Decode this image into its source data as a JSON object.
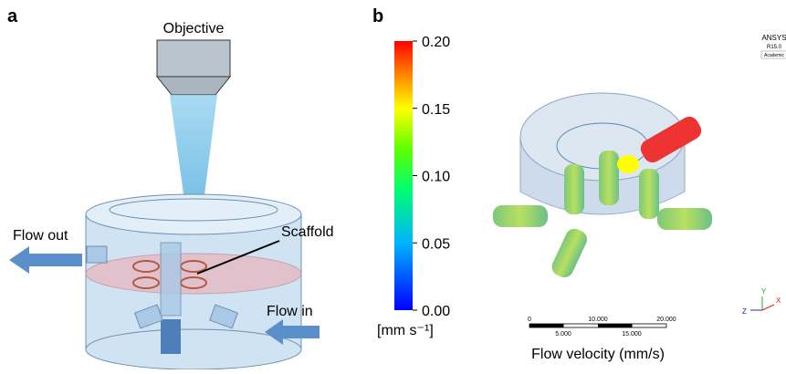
{
  "panel_a": {
    "label": "a",
    "objective": "Objective",
    "flow_out": "Flow out",
    "scaffold": "Scaffold",
    "flow_in": "Flow in"
  },
  "panel_b": {
    "label": "b",
    "colorbar": {
      "range": [
        0,
        0.2
      ],
      "ticks": [
        {
          "value": 0,
          "label": "0.00"
        },
        {
          "value": 0.05,
          "label": "0.05"
        },
        {
          "value": 0.1,
          "label": "0.10"
        },
        {
          "value": 0.15,
          "label": "0.15"
        },
        {
          "value": 0.2,
          "label": "0.20"
        }
      ],
      "unit": "[mm s⁻¹]"
    },
    "software": [
      "ANSYS",
      "R15.0",
      "Academic"
    ],
    "scale_bar": {
      "top": [
        "0",
        "10.000",
        "20.000"
      ],
      "bottom": [
        "5.000",
        "15.000"
      ]
    },
    "caption": "Flow velocity (mm/s)",
    "axes": [
      "Y",
      "X",
      "Z"
    ]
  }
}
